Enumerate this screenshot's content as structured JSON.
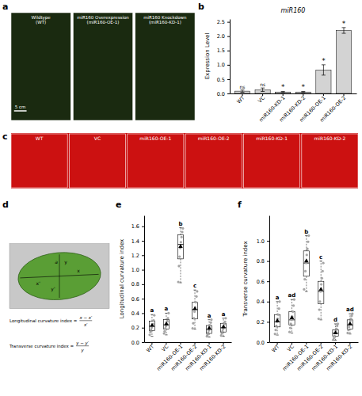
{
  "chart_data": [
    {
      "type": "photo",
      "subtitle": "a",
      "categories": [
        "Wildtype\n(WT)",
        "miR160 Overexpression\n(miR160-OE-1)",
        "miR160 Knockdown\n(miR160-KD-1)"
      ],
      "annotations": [
        "5 cm"
      ],
      "color": "#1a2a10"
    },
    {
      "type": "bar",
      "subtitle": "b",
      "title": "miR160",
      "categories": [
        "WT",
        "VC",
        "miR160-KD-1",
        "miR160-KD-2",
        "miR160-OE-1",
        "miR160-OE-2"
      ],
      "values": [
        0.08,
        0.13,
        0.05,
        0.05,
        0.82,
        2.2
      ],
      "errors": [
        0.04,
        0.06,
        0.02,
        0.02,
        0.18,
        0.1
      ],
      "annotations": [
        "ns",
        "ns",
        "*",
        "*",
        "*",
        "*"
      ],
      "color": "#d3d3d3",
      "ylabel": "Expression Level",
      "ylim": [
        0,
        2.6
      ],
      "yticks": [
        {
          "value": 0,
          "label": "0.0"
        },
        0.5,
        {
          "value": 1,
          "label": "1.0"
        },
        1.5,
        {
          "value": 2,
          "label": "2.0"
        },
        2.5
      ]
    },
    {
      "type": "photo",
      "subtitle": "c",
      "categories": [
        "WT",
        "VC",
        "miR160-OE-1",
        "miR160-OE-2",
        "miR160-KD-1",
        "miR160-KD-2"
      ],
      "color": "#cc1111"
    },
    {
      "type": "diagram",
      "subtitle": "d",
      "annotations": [
        "a",
        "x'",
        "x",
        "y'",
        "y",
        "Longitudinal curvature index =",
        "x − x′",
        "x′",
        "Transverse curvature index =",
        "y − y′",
        "y"
      ],
      "colors": [
        "#c8c8c8",
        "#5a9e35"
      ]
    },
    {
      "type": "box",
      "subtitle": "e",
      "ylabel": "Longitudinal curvature index",
      "ylim": [
        0.0,
        1.75
      ],
      "yticks": [
        {
          "value": 0,
          "label": "0.0"
        },
        0.2,
        0.4,
        0.6,
        0.8,
        {
          "value": 1,
          "label": "1.0"
        },
        1.2,
        1.4,
        1.6
      ],
      "categories": [
        "WT",
        "VC",
        "miR160-OE-1",
        "miR160-OE-2",
        "miR160-KD-1",
        "miR160-KD-2"
      ],
      "medians": [
        0.22,
        0.24,
        1.35,
        0.45,
        0.18,
        0.2
      ],
      "q1": [
        0.16,
        0.18,
        1.15,
        0.32,
        0.12,
        0.14
      ],
      "q3": [
        0.29,
        0.31,
        1.48,
        0.55,
        0.23,
        0.26
      ],
      "whisker_low": [
        0.08,
        0.1,
        0.82,
        0.18,
        0.07,
        0.08
      ],
      "whisker_high": [
        0.38,
        0.4,
        1.58,
        0.72,
        0.31,
        0.33
      ],
      "means": [
        0.23,
        0.25,
        1.32,
        0.46,
        0.19,
        0.21
      ],
      "points": [
        [
          0.1,
          0.14,
          0.17,
          0.2,
          0.22,
          0.25,
          0.3,
          0.37
        ],
        [
          0.12,
          0.15,
          0.19,
          0.22,
          0.25,
          0.29,
          0.33,
          0.4
        ],
        [
          0.83,
          1.05,
          1.18,
          1.3,
          1.38,
          1.45,
          1.52,
          1.57
        ],
        [
          0.19,
          0.26,
          0.33,
          0.42,
          0.48,
          0.55,
          0.63,
          0.7
        ],
        [
          0.08,
          0.1,
          0.13,
          0.16,
          0.2,
          0.23,
          0.27,
          0.31
        ],
        [
          0.09,
          0.12,
          0.15,
          0.18,
          0.21,
          0.25,
          0.28,
          0.33
        ]
      ],
      "annotations": [
        "a",
        "a",
        "b",
        "c",
        "a",
        "a"
      ]
    },
    {
      "type": "box",
      "subtitle": "f",
      "ylabel": "Transverse curvature index",
      "ylim": [
        0.0,
        1.25
      ],
      "yticks": [
        {
          "value": 0,
          "label": "0.0"
        },
        0.2,
        0.4,
        0.6,
        0.8,
        {
          "value": 1,
          "label": "1.0"
        }
      ],
      "categories": [
        "WT",
        "VC",
        "miR160-OE-1",
        "miR160-OE-2",
        "miR160-KD-1",
        "miR160-KD-2"
      ],
      "medians": [
        0.2,
        0.22,
        0.78,
        0.5,
        0.09,
        0.17
      ],
      "q1": [
        0.15,
        0.17,
        0.65,
        0.38,
        0.06,
        0.13
      ],
      "q3": [
        0.27,
        0.3,
        0.9,
        0.6,
        0.12,
        0.22
      ],
      "whisker_low": [
        0.07,
        0.09,
        0.5,
        0.22,
        0.02,
        0.08
      ],
      "whisker_high": [
        0.4,
        0.42,
        1.05,
        0.8,
        0.18,
        0.28
      ],
      "means": [
        0.21,
        0.24,
        0.8,
        0.52,
        0.09,
        0.18
      ],
      "points": [
        [
          0.08,
          0.12,
          0.16,
          0.2,
          0.23,
          0.27,
          0.33,
          0.4
        ],
        [
          0.1,
          0.14,
          0.18,
          0.22,
          0.25,
          0.3,
          0.36,
          0.42
        ],
        [
          0.52,
          0.62,
          0.7,
          0.78,
          0.86,
          0.92,
          0.99,
          1.05
        ],
        [
          0.23,
          0.32,
          0.4,
          0.5,
          0.57,
          0.63,
          0.7,
          0.78
        ],
        [
          0.02,
          0.04,
          0.06,
          0.09,
          0.11,
          0.13,
          0.16,
          0.18
        ],
        [
          0.09,
          0.12,
          0.15,
          0.18,
          0.21,
          0.23,
          0.26,
          0.28
        ]
      ],
      "annotations": [
        "a",
        "ad",
        "b",
        "c",
        "d",
        "ad"
      ]
    }
  ]
}
